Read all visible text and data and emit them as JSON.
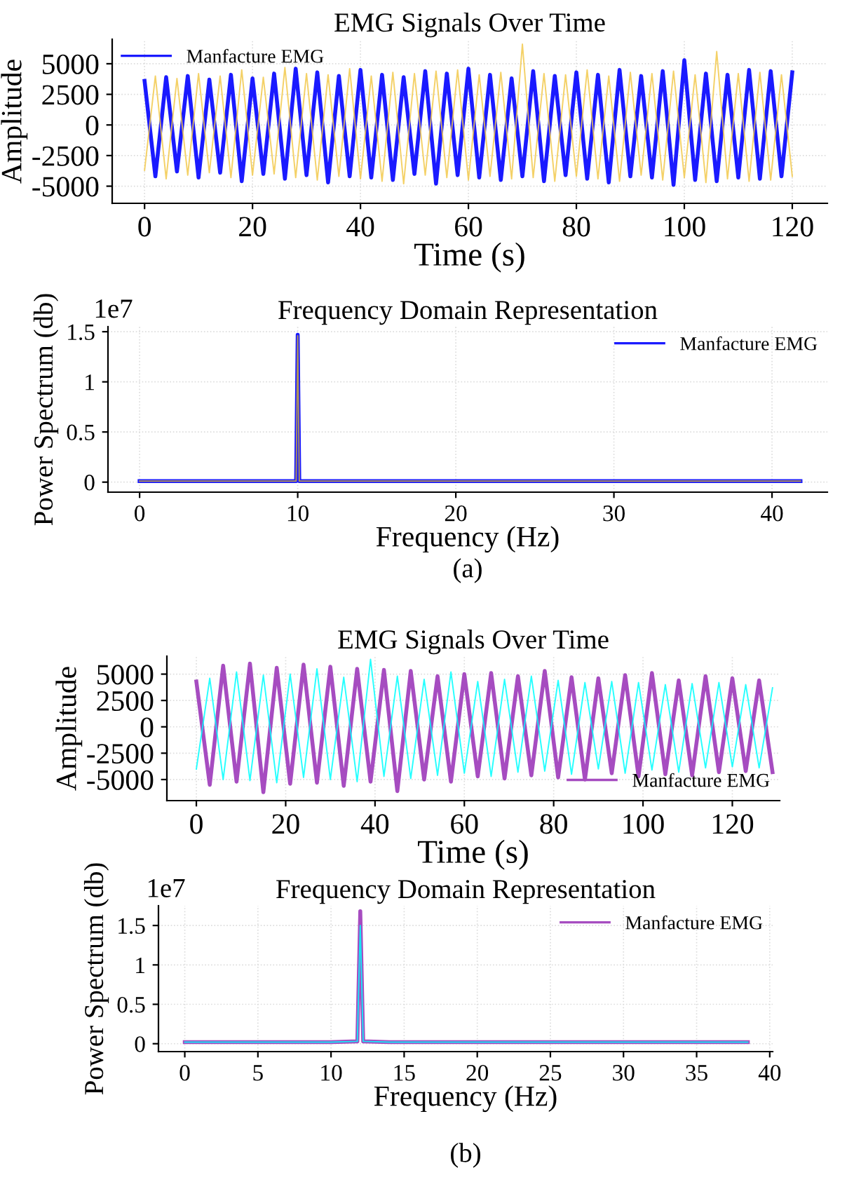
{
  "chart_data": [
    {
      "type": "line",
      "title": "EMG Signals Over Time",
      "xlabel": "Time (s)",
      "ylabel": "Amplitude",
      "xlim": [
        -6,
        126.5
      ],
      "ylim": [
        -6400,
        7000
      ],
      "xticks": [
        0,
        20,
        40,
        60,
        80,
        100,
        120
      ],
      "yticks": [
        -5000,
        -2500,
        0,
        2500,
        5000
      ],
      "grid": true,
      "legend": "top left",
      "x": [
        0,
        2,
        4,
        6,
        8,
        10,
        12,
        14,
        16,
        18,
        20,
        22,
        24,
        26,
        28,
        30,
        32,
        34,
        36,
        38,
        40,
        42,
        44,
        46,
        48,
        50,
        52,
        54,
        56,
        58,
        60,
        62,
        64,
        66,
        68,
        70,
        72,
        74,
        76,
        78,
        80,
        82,
        84,
        86,
        88,
        90,
        92,
        94,
        96,
        98,
        100,
        102,
        104,
        106,
        108,
        110,
        112,
        114,
        116,
        118,
        120
      ],
      "series": [
        {
          "name": "Manfacture EMG",
          "color": "#1a1aff",
          "values": [
            3600,
            -4200,
            3900,
            -3800,
            4000,
            -4300,
            3700,
            -3900,
            4100,
            -4600,
            3800,
            -4000,
            4200,
            -4400,
            4600,
            -4100,
            4300,
            -4700,
            4000,
            -4200,
            4500,
            -4300,
            4100,
            -4500,
            3900,
            -4000,
            4400,
            -4800,
            4200,
            -4100,
            4600,
            -4300,
            4100,
            -4500,
            3800,
            -4200,
            4400,
            -4600,
            4000,
            -4100,
            4300,
            -4400,
            4100,
            -4700,
            4500,
            -4200,
            4000,
            -4300,
            4400,
            -4900,
            5300,
            -4500,
            4200,
            -4600,
            4100,
            -4300,
            4500,
            -4400,
            4400,
            -4200,
            4300
          ]
        },
        {
          "color": "#f2c94c",
          "values": [
            -3700,
            4000,
            -4400,
            3800,
            -4100,
            4200,
            -3900,
            4000,
            -4300,
            4500,
            -4100,
            3900,
            -4000,
            4700,
            -4300,
            4200,
            -4500,
            4100,
            -4200,
            4600,
            -4400,
            4000,
            -4600,
            4300,
            -4800,
            4200,
            -4100,
            4400,
            -4300,
            4500,
            -4500,
            4100,
            -4200,
            4300,
            -4400,
            6600,
            -4300,
            4200,
            -4600,
            4100,
            -4200,
            4500,
            -4400,
            4000,
            -4600,
            4300,
            -4100,
            4200,
            -4500,
            4400,
            -4300,
            4100,
            -4700,
            6000,
            -4400,
            4200,
            -4600,
            4300,
            -4500,
            4100,
            -4200
          ]
        }
      ]
    },
    {
      "type": "line",
      "title": "Frequency Domain Representation",
      "xlabel": "Frequency (Hz)",
      "ylabel": "Power Spectrum (db)",
      "xlim": [
        -2,
        43.5
      ],
      "ylim": [
        -0.1,
        1.55
      ],
      "xticks": [
        0,
        10,
        20,
        30,
        40
      ],
      "yticks": [
        0,
        0.5,
        1,
        1.5
      ],
      "grid": true,
      "legend": "top right",
      "annotations": [
        "1e7",
        "(a)"
      ],
      "x": [
        0,
        2,
        4,
        6,
        8,
        9.9,
        10,
        10.1,
        12,
        14,
        16,
        18,
        20,
        22,
        24,
        26,
        28,
        30,
        32,
        34,
        36,
        38,
        40,
        41.8
      ],
      "series": [
        {
          "name": "Manfacture EMG",
          "color": "#1a1aff",
          "values": [
            0.01,
            0.01,
            0.01,
            0.01,
            0.01,
            0.01,
            1.47,
            0.01,
            0.01,
            0.01,
            0.01,
            0.01,
            0.01,
            0.01,
            0.01,
            0.01,
            0.01,
            0.01,
            0.01,
            0.01,
            0.01,
            0.01,
            0.01,
            0.01
          ]
        },
        {
          "color": "#c8a840",
          "values": [
            0.01,
            0.01,
            0.01,
            0.01,
            0.01,
            0.01,
            1.46,
            0.01,
            0.01,
            0.01,
            0.01,
            0.01,
            0.01,
            0.01,
            0.01,
            0.01,
            0.01,
            0.01,
            0.01,
            0.01,
            0.01,
            0.01,
            0.01,
            0.01
          ]
        }
      ]
    },
    {
      "type": "line",
      "title": "EMG Signals Over Time",
      "xlabel": "Time (s)",
      "ylabel": "Amplitude",
      "xlim": [
        -6.6,
        130.6
      ],
      "ylim": [
        -7000,
        6700
      ],
      "xticks": [
        0,
        20,
        40,
        60,
        80,
        100,
        120
      ],
      "yticks": [
        -5000,
        -2500,
        0,
        2500,
        5000
      ],
      "grid": true,
      "legend": "bottom right",
      "x": [
        0,
        3,
        6,
        9,
        12,
        15,
        18,
        21,
        24,
        27,
        30,
        33,
        36,
        39,
        42,
        45,
        48,
        51,
        54,
        57,
        60,
        63,
        66,
        69,
        72,
        75,
        78,
        81,
        84,
        87,
        90,
        93,
        96,
        99,
        102,
        105,
        108,
        111,
        114,
        117,
        120,
        123,
        126,
        129
      ],
      "series": [
        {
          "name": "Manfacture EMG",
          "color": "#a64cc0",
          "values": [
            4300,
            -5500,
            5800,
            -5200,
            6000,
            -6200,
            5600,
            -5400,
            5900,
            -5300,
            5700,
            -5600,
            5500,
            -5200,
            5400,
            -6100,
            5300,
            -5000,
            4800,
            -5200,
            5000,
            -4700,
            5100,
            -4900,
            4800,
            -4600,
            5300,
            -4800,
            4700,
            -5000,
            4600,
            -4400,
            4900,
            -4700,
            5100,
            -4500,
            4400,
            -4600,
            4800,
            -4300,
            4600,
            -4200,
            4400,
            -4300
          ]
        },
        {
          "color": "#00ffff",
          "values": [
            -4000,
            4600,
            -5000,
            5200,
            -5100,
            4900,
            -5300,
            5000,
            -4800,
            5500,
            -5000,
            4700,
            -5200,
            6400,
            -4700,
            4800,
            -4900,
            4500,
            -4600,
            5200,
            -4400,
            4300,
            -4700,
            4500,
            -4300,
            4800,
            -4200,
            4400,
            -4500,
            4200,
            -4000,
            4300,
            -4400,
            4200,
            -4100,
            4000,
            -4300,
            4100,
            -3900,
            4200,
            -3800,
            4000,
            -3900,
            3700
          ]
        }
      ]
    },
    {
      "type": "line",
      "title": "Frequency Domain Representation",
      "xlabel": "Frequency (Hz)",
      "ylabel": "Power Spectrum (db)",
      "xlim": [
        -1.8,
        40.2
      ],
      "ylim": [
        -0.1,
        1.75
      ],
      "xticks": [
        0,
        5,
        10,
        15,
        20,
        25,
        30,
        35,
        40
      ],
      "yticks": [
        0,
        0.5,
        1,
        1.5
      ],
      "grid": true,
      "legend": "top right",
      "annotations": [
        "1e7",
        "(b)"
      ],
      "x": [
        0,
        2,
        4,
        6,
        8,
        10,
        11.8,
        12,
        12.2,
        14,
        16,
        18,
        20,
        22,
        24,
        26,
        28,
        30,
        32,
        34,
        36,
        38,
        38.5
      ],
      "series": [
        {
          "name": "Manfacture EMG",
          "color": "#a64cc0",
          "values": [
            0.02,
            0.02,
            0.02,
            0.02,
            0.02,
            0.02,
            0.03,
            1.68,
            0.03,
            0.02,
            0.02,
            0.02,
            0.02,
            0.02,
            0.02,
            0.02,
            0.02,
            0.02,
            0.02,
            0.02,
            0.02,
            0.02,
            0.02
          ]
        },
        {
          "color": "#00ffff",
          "values": [
            0.02,
            0.02,
            0.02,
            0.02,
            0.02,
            0.02,
            0.03,
            1.5,
            0.03,
            0.02,
            0.02,
            0.02,
            0.02,
            0.02,
            0.02,
            0.02,
            0.02,
            0.02,
            0.02,
            0.02,
            0.02,
            0.02,
            0.02
          ]
        }
      ]
    }
  ]
}
